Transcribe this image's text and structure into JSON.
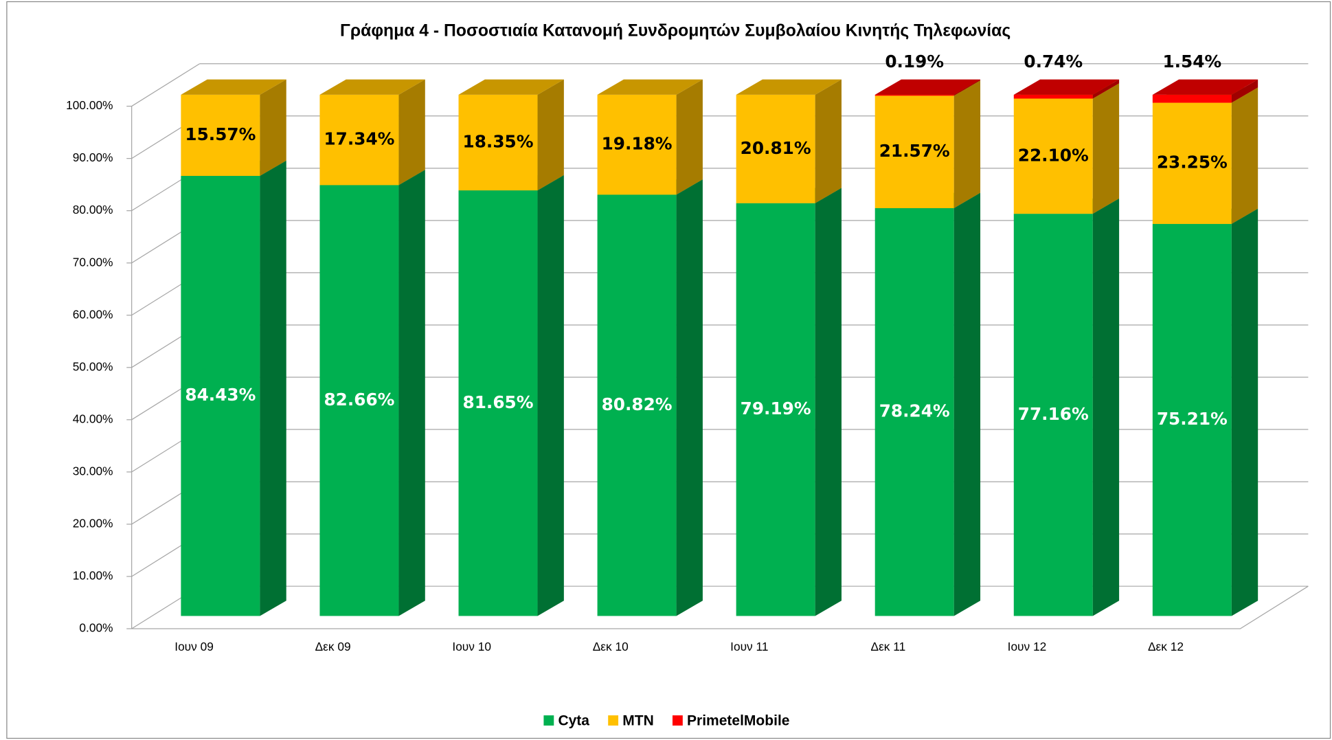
{
  "chart_data": {
    "type": "bar3d_stacked",
    "title": "Γράφημα 4 - Ποσοστιαία Κατανομή Συνδρομητών Συμβολαίου Κινητής Τηλεφωνίας",
    "categories": [
      "Ιουν 09",
      "Δεκ 09",
      "Ιουν 10",
      "Δεκ 10",
      "Ιουν 11",
      "Δεκ 11",
      "Ιουν 12",
      "Δεκ 12"
    ],
    "series": [
      {
        "name": "Cyta",
        "color": "#00b050",
        "side_color": "#007033",
        "top_color": "#009944",
        "label_color": "#ffffff",
        "values": [
          84.43,
          82.66,
          81.65,
          80.82,
          79.19,
          78.24,
          77.16,
          75.21
        ],
        "value_labels": [
          "84.43%",
          "82.66%",
          "81.65%",
          "80.82%",
          "79.19%",
          "78.24%",
          "77.16%",
          "75.21%"
        ]
      },
      {
        "name": "MTN",
        "color": "#ffc000",
        "side_color": "#a67c00",
        "top_color": "#c89600",
        "label_color": "#000000",
        "values": [
          15.57,
          17.34,
          18.35,
          19.18,
          20.81,
          21.57,
          22.1,
          23.25
        ],
        "value_labels": [
          "15.57%",
          "17.34%",
          "18.35%",
          "19.18%",
          "20.81%",
          "21.57%",
          "22.10%",
          "23.25%"
        ]
      },
      {
        "name": "PrimetelMobile",
        "color": "#ff0000",
        "side_color": "#a00000",
        "top_color": "#c00000",
        "label_color": "#000000",
        "values": [
          null,
          null,
          null,
          null,
          null,
          0.19,
          0.74,
          1.54
        ],
        "value_labels": [
          null,
          null,
          null,
          null,
          null,
          "0.19%",
          "0.74%",
          "1.54%"
        ]
      }
    ],
    "ylim": [
      0,
      100
    ],
    "yticks": [
      {
        "value": 0,
        "label": "0.00%"
      },
      {
        "value": 10,
        "label": "10.00%"
      },
      {
        "value": 20,
        "label": "20.00%"
      },
      {
        "value": 30,
        "label": "30.00%"
      },
      {
        "value": 40,
        "label": "40.00%"
      },
      {
        "value": 50,
        "label": "50.00%"
      },
      {
        "value": 60,
        "label": "60.00%"
      },
      {
        "value": 70,
        "label": "70.00%"
      },
      {
        "value": 80,
        "label": "80.00%"
      },
      {
        "value": 90,
        "label": "90.00%"
      },
      {
        "value": 100,
        "label": "100.00%"
      }
    ],
    "grid": true,
    "legend": "bottom"
  }
}
